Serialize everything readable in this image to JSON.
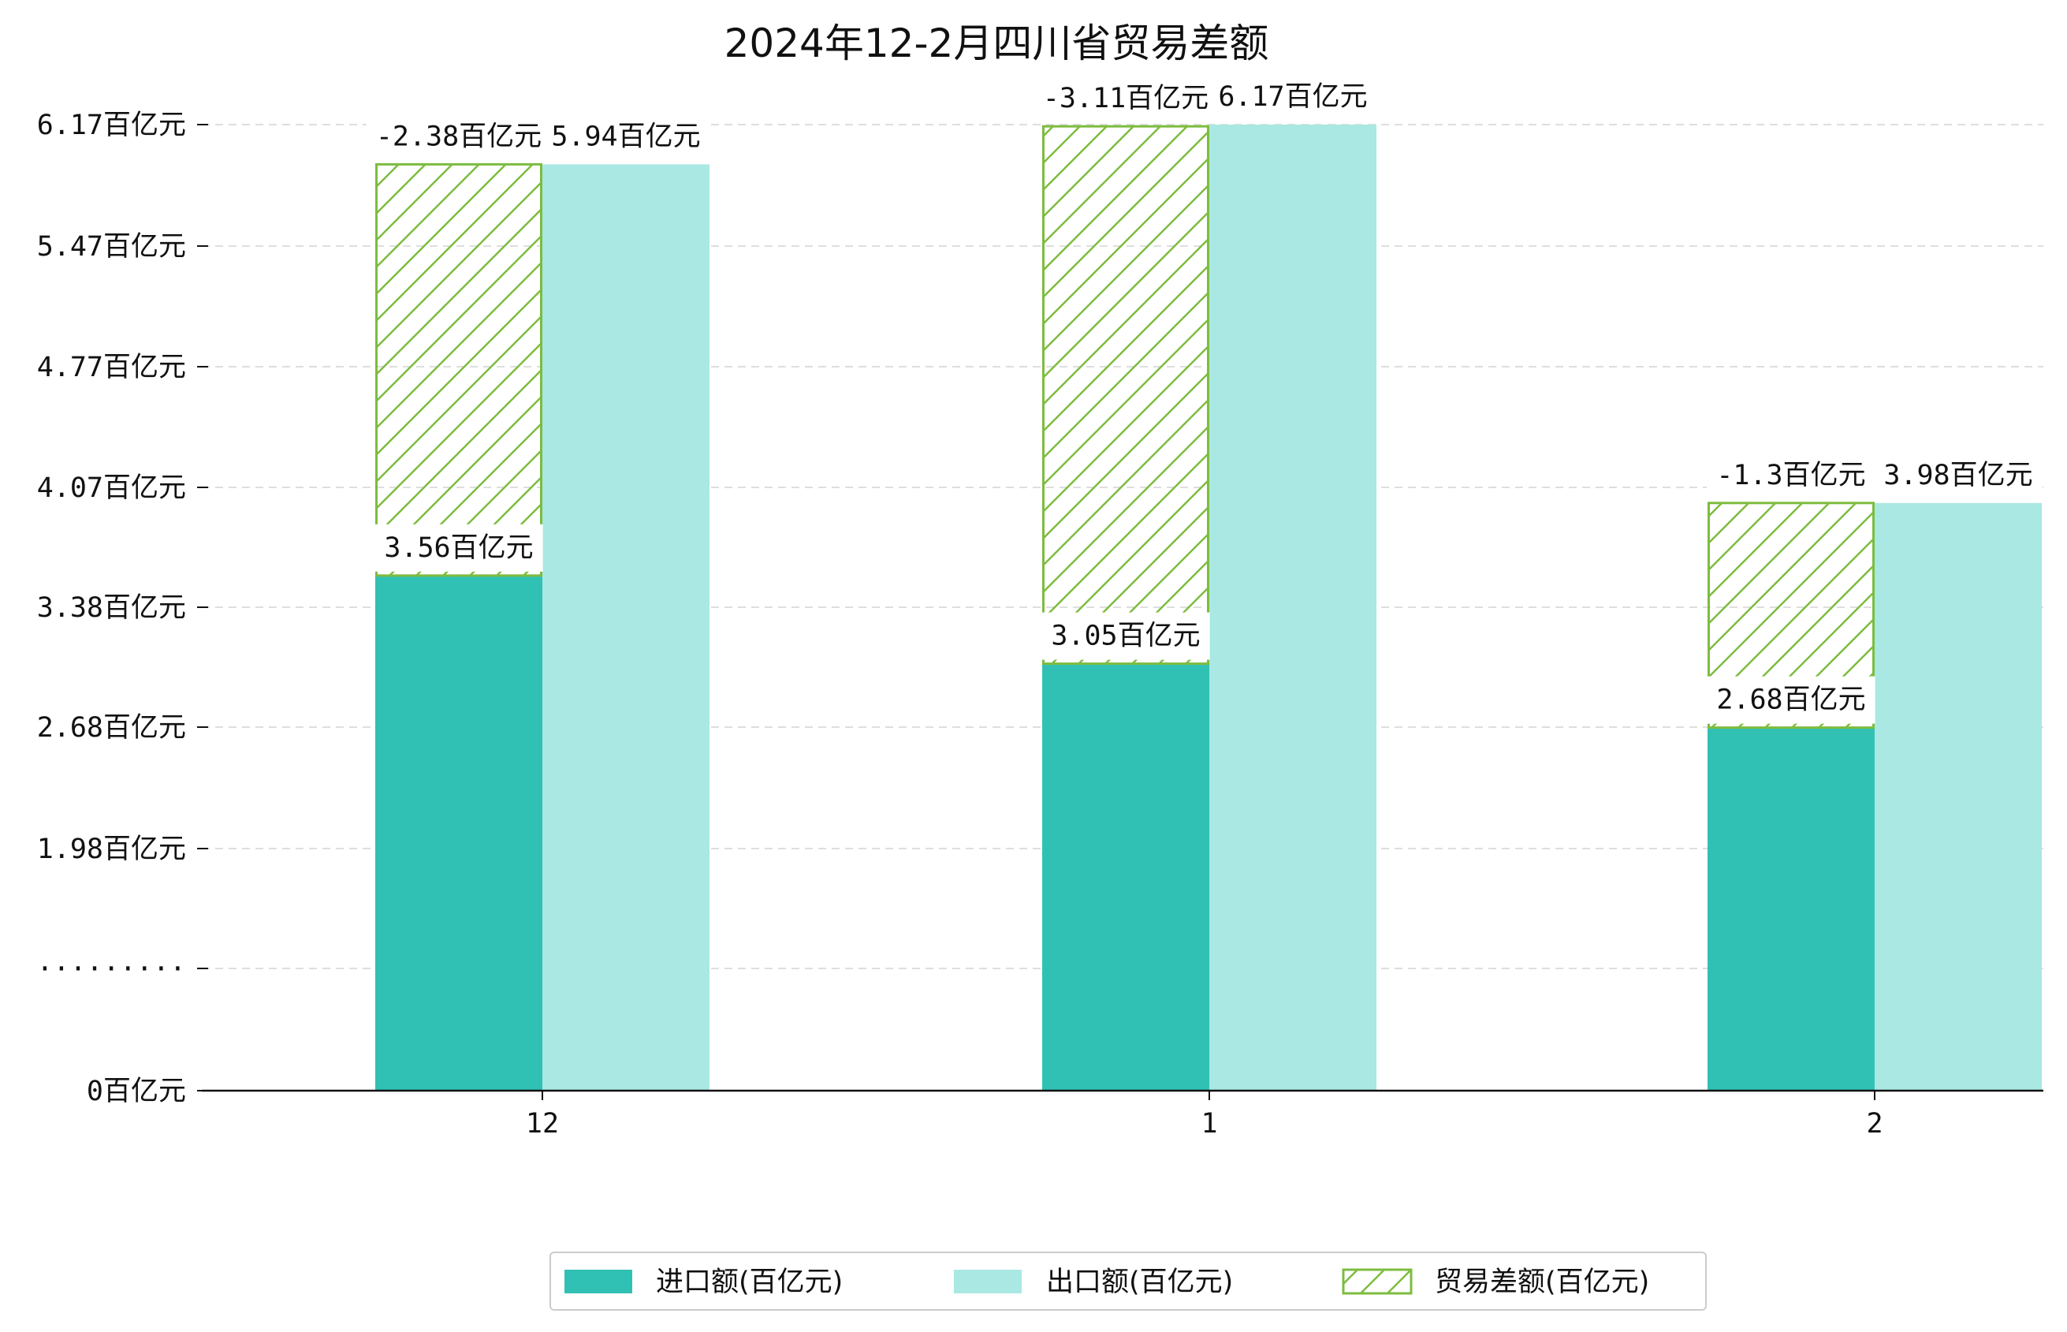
{
  "colors": {
    "import": "#31c1b4",
    "export": "#a9e8e3",
    "balance_stroke": "#7dbc3f",
    "axis": "#111111",
    "grid": "#dedede",
    "label_bg": "#ffffff"
  },
  "chart_data": {
    "type": "bar",
    "title": "2024年12-2月四川省贸易差额",
    "categories": [
      "12",
      "1",
      "2"
    ],
    "series": [
      {
        "name": "进口额(百亿元)",
        "values": [
          3.56,
          3.05,
          2.68
        ],
        "labels": [
          "3.56百亿元",
          "3.05百亿元",
          "2.68百亿元"
        ]
      },
      {
        "name": "出口额(百亿元)",
        "values": [
          5.94,
          6.17,
          3.98
        ],
        "labels": [
          "5.94百亿元",
          "6.17百亿元",
          "3.98百亿元"
        ]
      },
      {
        "name": "贸易差额(百亿元)",
        "values": [
          -2.38,
          -3.11,
          -1.3
        ],
        "labels": [
          "-2.38百亿元",
          "-3.11百亿元",
          "-1.3百亿元"
        ]
      }
    ],
    "y_ticks": [
      {
        "label": "0百亿元",
        "value": 0
      },
      {
        "label": "·········",
        "value": null
      },
      {
        "label": "1.98百亿元",
        "value": 1.98
      },
      {
        "label": "2.68百亿元",
        "value": 2.68
      },
      {
        "label": "3.38百亿元",
        "value": 3.38
      },
      {
        "label": "4.07百亿元",
        "value": 4.07
      },
      {
        "label": "4.77百亿元",
        "value": 4.77
      },
      {
        "label": "5.47百亿元",
        "value": 5.47
      },
      {
        "label": "6.17百亿元",
        "value": 6.17
      }
    ],
    "grid": true,
    "grid_style": "dashed",
    "legend_position": "bottom-center",
    "balance_style": "hatched, stacked on import bar"
  }
}
